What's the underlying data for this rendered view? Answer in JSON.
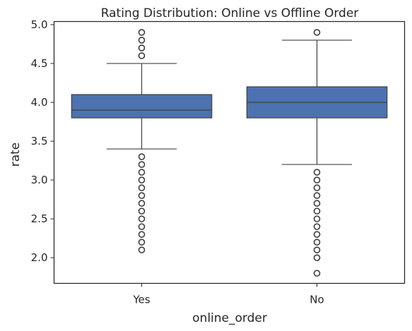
{
  "chart_data": {
    "type": "box",
    "title": "Rating Distribution: Online vs Offline Order",
    "xlabel": "online_order",
    "ylabel": "rate",
    "categories": [
      "Yes",
      "No"
    ],
    "ylim": [
      1.67,
      5.04
    ],
    "yticks": [
      2.0,
      2.5,
      3.0,
      3.5,
      4.0,
      4.5,
      5.0
    ],
    "ytick_labels": [
      "2.0",
      "2.5",
      "3.0",
      "3.5",
      "4.0",
      "4.5",
      "5.0"
    ],
    "grid": false,
    "box_color": "#4c72b0",
    "line_color": "#404040",
    "boxes": [
      {
        "category": "Yes",
        "whisker_low": 3.4,
        "q1": 3.8,
        "median": 3.9,
        "q3": 4.1,
        "whisker_high": 4.5,
        "outliers": [
          4.6,
          4.7,
          4.8,
          4.9,
          2.1,
          2.2,
          2.3,
          2.4,
          2.5,
          2.6,
          2.7,
          2.8,
          2.9,
          3.0,
          3.1,
          3.2,
          3.3
        ]
      },
      {
        "category": "No",
        "whisker_low": 3.2,
        "q1": 3.8,
        "median": 4.0,
        "q3": 4.2,
        "whisker_high": 4.8,
        "outliers": [
          4.9,
          1.8,
          2.0,
          2.1,
          2.2,
          2.3,
          2.4,
          2.5,
          2.6,
          2.7,
          2.8,
          2.9,
          3.0,
          3.1
        ]
      }
    ]
  }
}
